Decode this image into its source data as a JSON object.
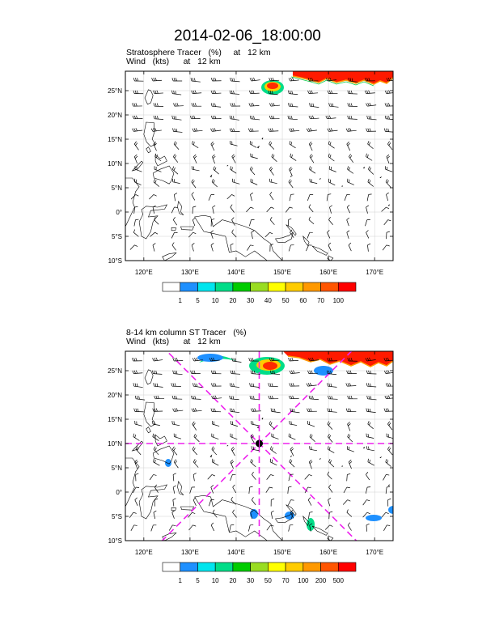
{
  "title": "2014-02-06_18:00:00",
  "panels": [
    {
      "id": "top",
      "subtitle_line1": "Stratosphere Tracer   (%)     at   12 km",
      "subtitle_line2": "Wind   (kts)      at   12 km",
      "lat_labels": [
        "25°N",
        "20°N",
        "15°N",
        "10°N",
        "5°N",
        "0°",
        "5°S",
        "10°S"
      ],
      "lon_labels": [
        "120°E",
        "130°E",
        "140°E",
        "150°E",
        "160°E",
        "170°E"
      ],
      "colorbar_labels": [
        "1",
        "5",
        "10",
        "20",
        "30",
        "40",
        "50",
        "60",
        "70",
        "100"
      ],
      "colorbar_colors": [
        "#ffffff",
        "#1e90ff",
        "#00e5ee",
        "#00dd88",
        "#00cc00",
        "#99dd22",
        "#ffff00",
        "#ffcc00",
        "#ff9900",
        "#ff5500",
        "#ff0000"
      ],
      "marker": false
    },
    {
      "id": "bottom",
      "subtitle_line1": "8-14 km column ST Tracer   (%)",
      "subtitle_line2": "Wind   (kts)      at   12 km",
      "lat_labels": [
        "25°N",
        "20°N",
        "15°N",
        "10°N",
        "5°N",
        "0°",
        "5°S",
        "10°S"
      ],
      "lon_labels": [
        "120°E",
        "130°E",
        "140°E",
        "150°E",
        "160°E",
        "170°E"
      ],
      "colorbar_labels": [
        "1",
        "5",
        "10",
        "20",
        "30",
        "50",
        "70",
        "100",
        "200",
        "500"
      ],
      "colorbar_colors": [
        "#ffffff",
        "#1e90ff",
        "#00e5ee",
        "#00dd88",
        "#00cc00",
        "#99dd22",
        "#ffff00",
        "#ffcc00",
        "#ff9900",
        "#ff5500",
        "#ff0000"
      ],
      "marker": true,
      "marker_center": {
        "lon": 145,
        "lat": 10
      }
    }
  ],
  "map_extent": {
    "lon_min": 116,
    "lon_max": 174,
    "lat_min": -10,
    "lat_max": 29
  },
  "colors": {
    "axis": "#000000",
    "grid": "#d0d0d0",
    "coast": "#000000",
    "crosshair": "#ee22ee"
  }
}
